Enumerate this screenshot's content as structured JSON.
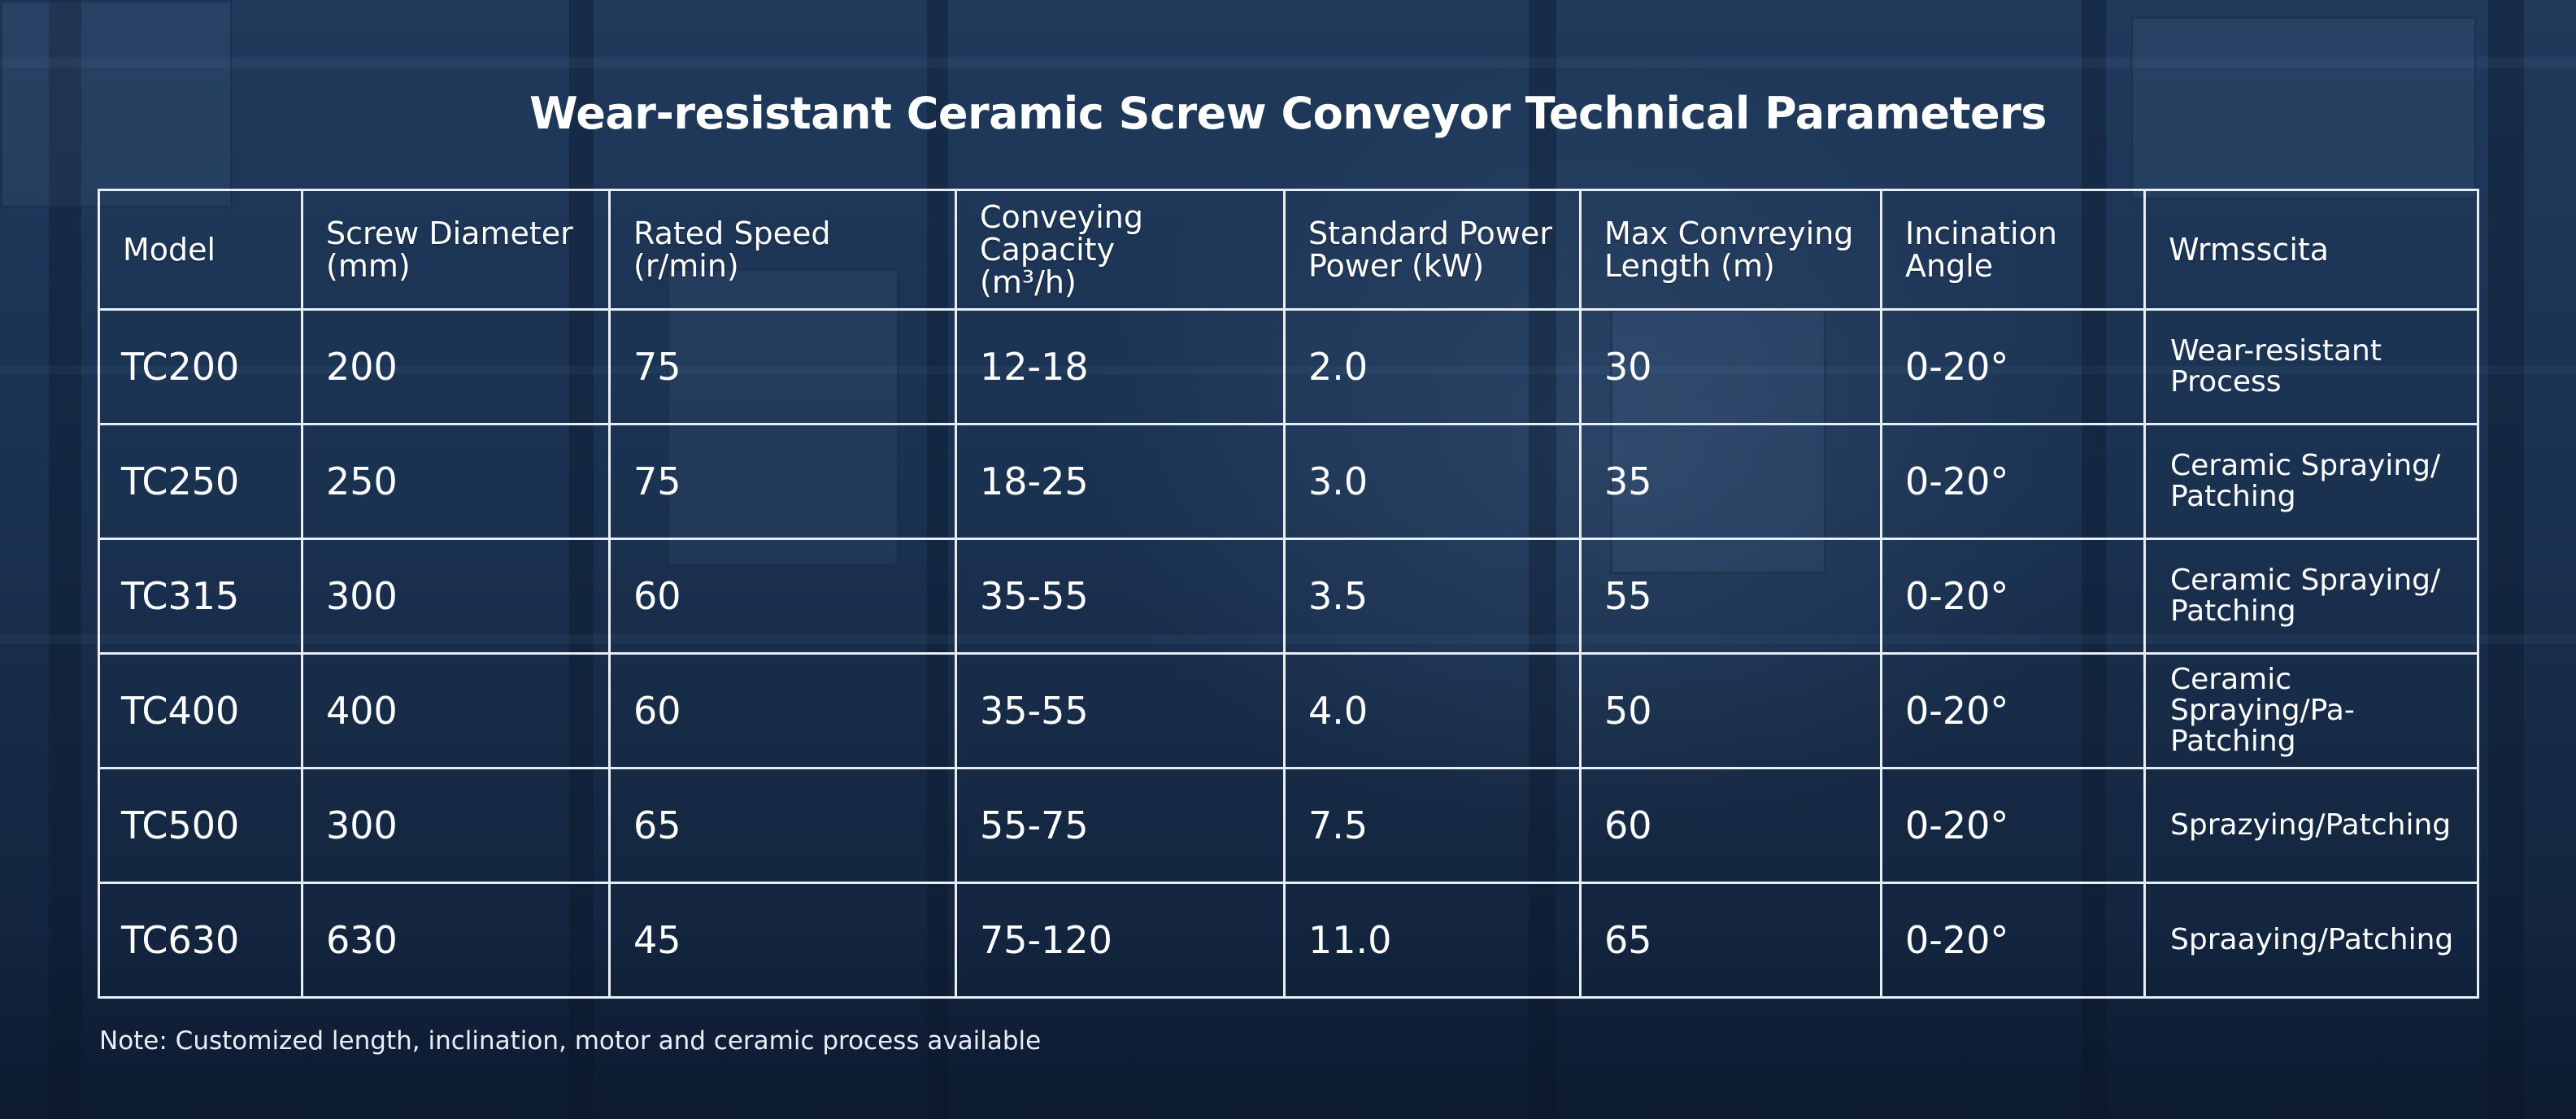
{
  "title": "Wear-resistant Ceramic Screw Conveyor Technical Parameters",
  "table": {
    "headers": [
      [
        "Model"
      ],
      [
        "Screw Diameter",
        "(mm)"
      ],
      [
        "Rated Speed",
        "(r/min)"
      ],
      [
        "Conveying Capacity",
        "(m³/h)"
      ],
      [
        "Standard Power",
        "Power (kW)"
      ],
      [
        "Max Convreying",
        "Length (m)"
      ],
      [
        "Incination Angle"
      ],
      [
        "Wrmsscita"
      ]
    ],
    "rows": [
      {
        "model": "TC200",
        "diameter": "200",
        "speed": "75",
        "capacity": "12-18",
        "power": "2.0",
        "length": "30",
        "angle": "0-20°",
        "process": [
          "Wear-resistant Process"
        ]
      },
      {
        "model": "TC250",
        "diameter": "250",
        "speed": "75",
        "capacity": "18-25",
        "power": "3.0",
        "length": "35",
        "angle": "0-20°",
        "process": [
          "Ceramic Spraying/",
          "Patching"
        ]
      },
      {
        "model": "TC315",
        "diameter": "300",
        "speed": "60",
        "capacity": "35-55",
        "power": "3.5",
        "length": "55",
        "angle": "0-20°",
        "process": [
          "Ceramic Spraying/",
          "Patching"
        ]
      },
      {
        "model": "TC400",
        "diameter": "400",
        "speed": "60",
        "capacity": "35-55",
        "power": "4.0",
        "length": "50",
        "angle": "0-20°",
        "process": [
          "Ceramic Spraying/Pa-",
          "Patching"
        ]
      },
      {
        "model": "TC500",
        "diameter": "300",
        "speed": "65",
        "capacity": "55-75",
        "power": "7.5",
        "length": "60",
        "angle": "0-20°",
        "process": [
          "Sprazying/Patching"
        ]
      },
      {
        "model": "TC630",
        "diameter": "630",
        "speed": "45",
        "capacity": "75-120",
        "power": "11.0",
        "length": "65",
        "angle": "0-20°",
        "process": [
          "Spraaying/Patching"
        ]
      }
    ]
  },
  "note": "Note: Customized length, inclination, motor and ceramic process available"
}
